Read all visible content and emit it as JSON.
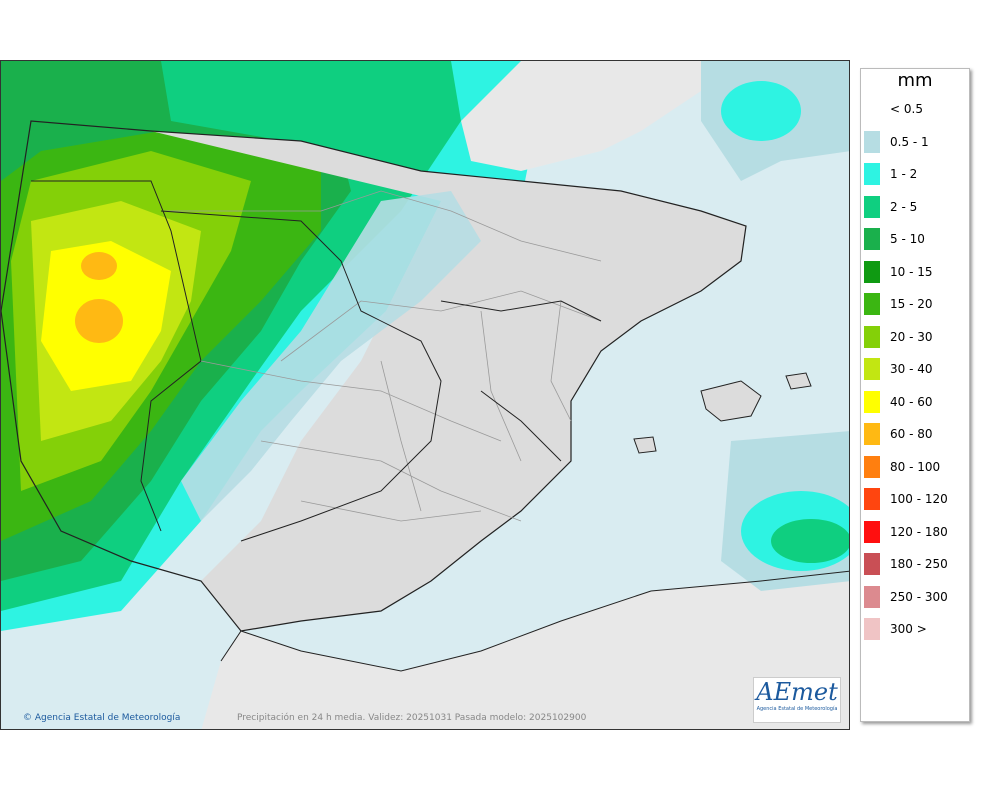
{
  "map": {
    "copyright": "© Agencia Estatal de Meteorología",
    "caption": "Precipitación en 24 h media. Validez: 20251031 Pasada modelo: 2025102900",
    "logo_text": "AEmet",
    "logo_subtitle": "Agencia Estatal de Meteorología"
  },
  "legend": {
    "title": "mm",
    "items": [
      {
        "label": "< 0.5",
        "color": "#ffffff"
      },
      {
        "label": "0.5 - 1",
        "color": "#b6dde3"
      },
      {
        "label": "1 - 2",
        "color": "#2ef3e2"
      },
      {
        "label": "2 - 5",
        "color": "#0fcf80"
      },
      {
        "label": "5 - 10",
        "color": "#1ab04c"
      },
      {
        "label": "10 - 15",
        "color": "#0f9a12"
      },
      {
        "label": "15 - 20",
        "color": "#3bb612"
      },
      {
        "label": "20 - 30",
        "color": "#84d008"
      },
      {
        "label": "30 - 40",
        "color": "#c2e612"
      },
      {
        "label": "40 - 60",
        "color": "#ffff00"
      },
      {
        "label": "60 - 80",
        "color": "#ffb913"
      },
      {
        "label": "80 - 100",
        "color": "#ff7f0f"
      },
      {
        "label": "100 - 120",
        "color": "#ff450f"
      },
      {
        "label": "120 - 180",
        "color": "#ff0f0f"
      },
      {
        "label": "180 - 250",
        "color": "#c94f55"
      },
      {
        "label": "250 - 300",
        "color": "#dc8a8f"
      },
      {
        "label": "300 >",
        "color": "#f0c4c5"
      }
    ]
  },
  "colors": {
    "land": "#dcdcdc",
    "sea": "#d9ecf1",
    "border": "#222222",
    "admin_border": "#9a9a9a"
  }
}
